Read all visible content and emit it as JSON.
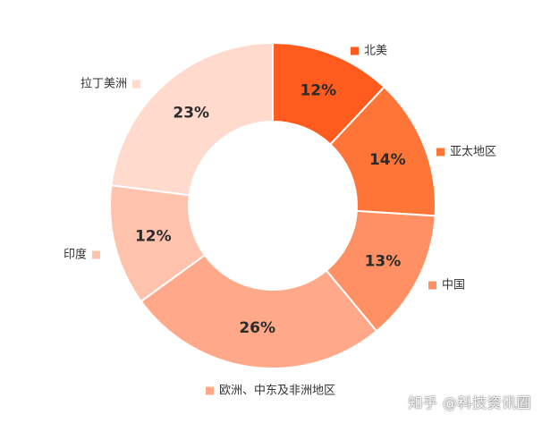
{
  "watermark": "知乎 @科技资讯圈",
  "chart_data": {
    "type": "pie",
    "donut": true,
    "title": "",
    "legend": "labels-beside-slices",
    "slices": [
      {
        "name": "北美",
        "value": 12,
        "label": "12%",
        "color": "#FF5B1E"
      },
      {
        "name": "亚太地区",
        "value": 14,
        "label": "14%",
        "color": "#FF7538"
      },
      {
        "name": "中国",
        "value": 13,
        "label": "13%",
        "color": "#FF9064"
      },
      {
        "name": "欧洲、中东及非洲地区",
        "value": 26,
        "label": "26%",
        "color": "#FFA98A"
      },
      {
        "name": "印度",
        "value": 12,
        "label": "12%",
        "color": "#FFC2AD"
      },
      {
        "name": "拉丁美洲",
        "value": 23,
        "label": "23%",
        "color": "#FFDACD"
      }
    ]
  }
}
